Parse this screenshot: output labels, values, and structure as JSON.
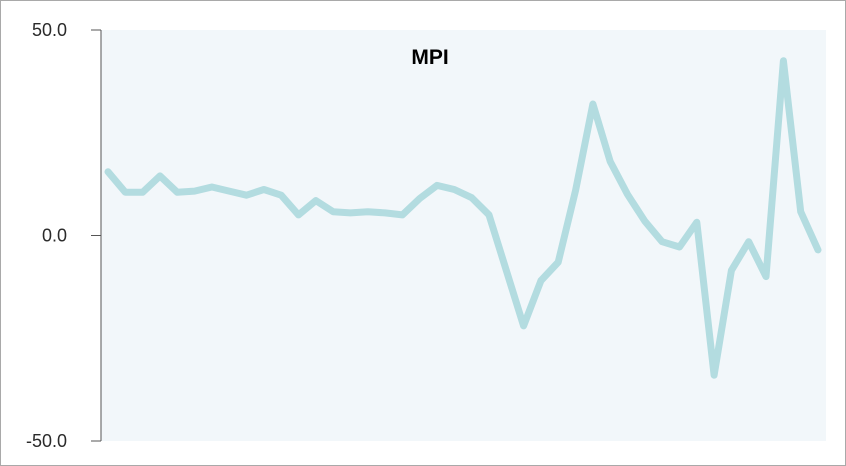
{
  "chart_data": {
    "type": "line",
    "title": "MPI",
    "xlabel": "",
    "ylabel": "",
    "ylim": [
      -50,
      50
    ],
    "yticks": [
      {
        "value": 50,
        "label": "50.0"
      },
      {
        "value": 0,
        "label": "0.0"
      },
      {
        "value": -50,
        "label": "-50.0"
      }
    ],
    "grid": false,
    "legend": "none",
    "colors": {
      "plot_background": "#f2f7fa",
      "series_line": "#b3dce0",
      "axis": "#555555"
    },
    "series": [
      {
        "values": [
          15.5,
          10.5,
          10.5,
          14.5,
          10.5,
          10.8,
          11.8,
          10.8,
          9.8,
          11.2,
          9.8,
          5.0,
          8.5,
          5.8,
          5.5,
          5.8,
          5.5,
          5.0,
          9.0,
          12.2,
          11.2,
          9.2,
          5.0,
          -8.5,
          -22.0,
          -11.0,
          -6.5,
          11.0,
          32.0,
          18.0,
          10.0,
          3.5,
          -1.5,
          -2.8,
          3.2,
          -34.0,
          -8.5,
          -1.5,
          -10.0,
          42.5,
          5.8,
          -3.5
        ]
      }
    ]
  }
}
